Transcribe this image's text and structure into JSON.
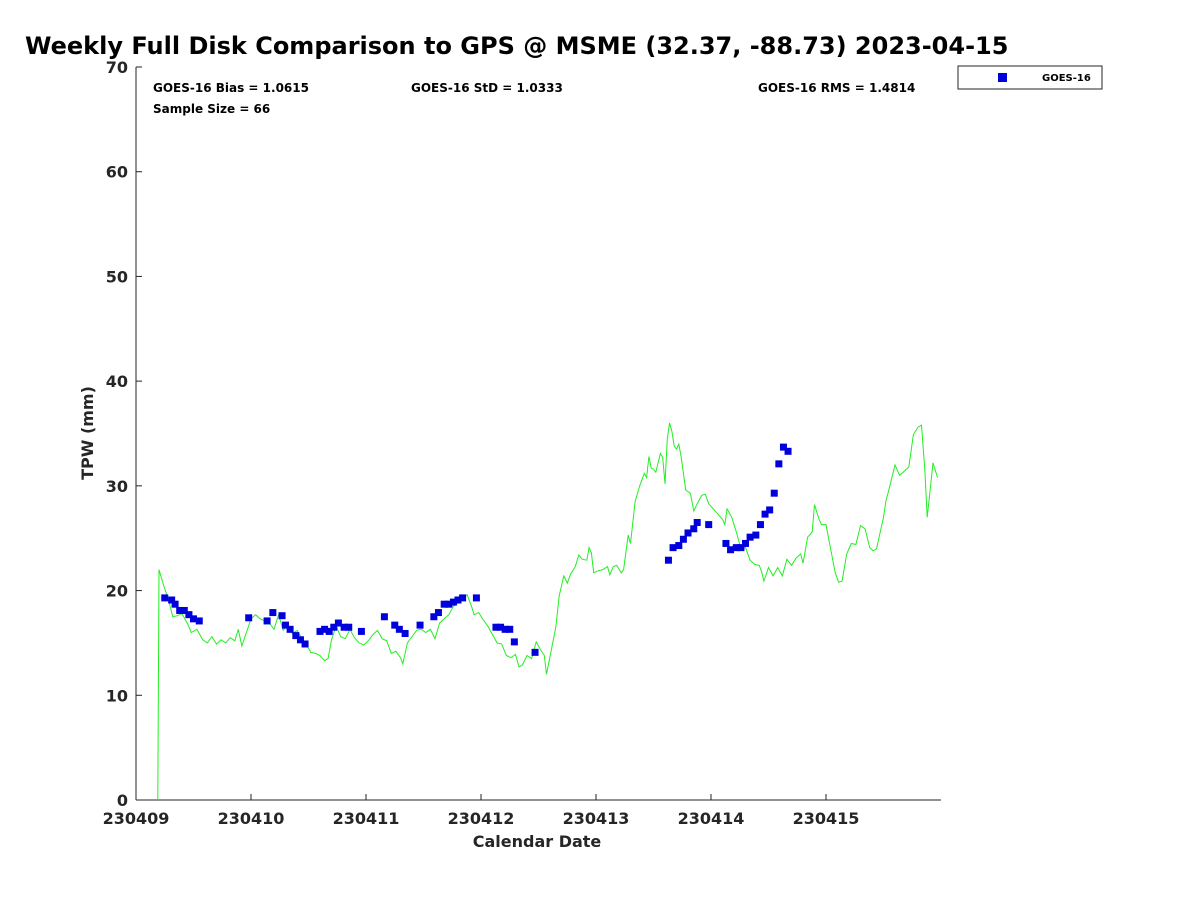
{
  "chart_data": {
    "type": "scatter",
    "title": "Weekly Full Disk Comparison to GPS @ MSME (32.37, -88.73) 2023-04-15",
    "xlabel": "Calendar Date",
    "ylabel": "TPW (mm)",
    "xlim": [
      0,
      7
    ],
    "ylim": [
      0,
      70
    ],
    "x_ticks": [
      0,
      1,
      2,
      3,
      4,
      5,
      6
    ],
    "x_tick_labels": [
      "230409",
      "230410",
      "230411",
      "230412",
      "230413",
      "230414",
      "230415"
    ],
    "y_ticks": [
      0,
      10,
      20,
      30,
      40,
      50,
      60,
      70
    ],
    "y_tick_labels": [
      "0",
      "10",
      "20",
      "30",
      "40",
      "50",
      "60",
      "70"
    ],
    "grid": false,
    "legend_position": "outside top-right",
    "stats": {
      "bias": "GOES-16 Bias = 1.0615",
      "std": "GOES-16 StD = 1.0333",
      "rms": "GOES-16 RMS = 1.4814",
      "sample": "Sample Size = 66"
    },
    "series": [
      {
        "name": "GOES-16",
        "kind": "scatter",
        "marker": "square",
        "color": "#0000dd",
        "points": [
          [
            0.25,
            19.3
          ],
          [
            0.31,
            19.1
          ],
          [
            0.34,
            18.7
          ],
          [
            0.38,
            18.1
          ],
          [
            0.42,
            18.1
          ],
          [
            0.46,
            17.7
          ],
          [
            0.5,
            17.3
          ],
          [
            0.55,
            17.1
          ],
          [
            0.98,
            17.4
          ],
          [
            1.14,
            17.1
          ],
          [
            1.19,
            17.9
          ],
          [
            1.27,
            17.6
          ],
          [
            1.3,
            16.7
          ],
          [
            1.34,
            16.3
          ],
          [
            1.39,
            15.7
          ],
          [
            1.43,
            15.3
          ],
          [
            1.47,
            14.9
          ],
          [
            1.6,
            16.1
          ],
          [
            1.64,
            16.3
          ],
          [
            1.68,
            16.1
          ],
          [
            1.72,
            16.5
          ],
          [
            1.76,
            16.9
          ],
          [
            1.81,
            16.5
          ],
          [
            1.85,
            16.5
          ],
          [
            1.96,
            16.1
          ],
          [
            2.16,
            17.5
          ],
          [
            2.25,
            16.7
          ],
          [
            2.29,
            16.3
          ],
          [
            2.34,
            15.9
          ],
          [
            2.47,
            16.7
          ],
          [
            2.59,
            17.5
          ],
          [
            2.63,
            17.9
          ],
          [
            2.68,
            18.7
          ],
          [
            2.72,
            18.7
          ],
          [
            2.76,
            18.9
          ],
          [
            2.8,
            19.1
          ],
          [
            2.84,
            19.3
          ],
          [
            2.96,
            19.3
          ],
          [
            3.13,
            16.5
          ],
          [
            3.17,
            16.5
          ],
          [
            3.21,
            16.3
          ],
          [
            3.25,
            16.3
          ],
          [
            3.29,
            15.1
          ],
          [
            3.47,
            14.1
          ],
          [
            4.63,
            22.9
          ],
          [
            4.67,
            24.1
          ],
          [
            4.72,
            24.3
          ],
          [
            4.76,
            24.9
          ],
          [
            4.8,
            25.5
          ],
          [
            4.85,
            25.9
          ],
          [
            4.88,
            26.5
          ],
          [
            4.98,
            26.3
          ],
          [
            5.13,
            24.5
          ],
          [
            5.17,
            23.9
          ],
          [
            5.22,
            24.1
          ],
          [
            5.26,
            24.1
          ],
          [
            5.3,
            24.5
          ],
          [
            5.34,
            25.1
          ],
          [
            5.39,
            25.3
          ],
          [
            5.43,
            26.3
          ],
          [
            5.47,
            27.3
          ],
          [
            5.51,
            27.7
          ],
          [
            5.55,
            29.3
          ],
          [
            5.59,
            32.1
          ],
          [
            5.63,
            33.7
          ],
          [
            5.67,
            33.3
          ]
        ]
      },
      {
        "kind": "line",
        "color": "#22ee22",
        "points": [
          [
            0.19,
            0
          ],
          [
            0.2,
            22.0
          ],
          [
            0.24,
            20.5
          ],
          [
            0.28,
            19.2
          ],
          [
            0.32,
            17.5
          ],
          [
            0.36,
            17.6
          ],
          [
            0.4,
            17.8
          ],
          [
            0.45,
            16.8
          ],
          [
            0.48,
            16.0
          ],
          [
            0.53,
            16.3
          ],
          [
            0.58,
            15.3
          ],
          [
            0.62,
            15.0
          ],
          [
            0.66,
            15.6
          ],
          [
            0.7,
            14.9
          ],
          [
            0.74,
            15.3
          ],
          [
            0.78,
            15.0
          ],
          [
            0.82,
            15.5
          ],
          [
            0.86,
            15.2
          ],
          [
            0.89,
            16.3
          ],
          [
            0.92,
            14.7
          ],
          [
            0.96,
            16.0
          ],
          [
            1.0,
            17.3
          ],
          [
            1.04,
            17.7
          ],
          [
            1.08,
            17.3
          ],
          [
            1.12,
            17.1
          ],
          [
            1.16,
            16.9
          ],
          [
            1.2,
            16.3
          ],
          [
            1.24,
            17.7
          ],
          [
            1.28,
            16.2
          ],
          [
            1.32,
            16.7
          ],
          [
            1.36,
            15.9
          ],
          [
            1.4,
            16.2
          ],
          [
            1.44,
            15.5
          ],
          [
            1.48,
            14.9
          ],
          [
            1.52,
            14.1
          ],
          [
            1.56,
            14.0
          ],
          [
            1.6,
            13.8
          ],
          [
            1.64,
            13.3
          ],
          [
            1.67,
            13.5
          ],
          [
            1.7,
            15.3
          ],
          [
            1.74,
            16.6
          ],
          [
            1.78,
            15.6
          ],
          [
            1.82,
            15.4
          ],
          [
            1.86,
            16.3
          ],
          [
            1.9,
            15.5
          ],
          [
            1.94,
            15.0
          ],
          [
            1.98,
            14.8
          ],
          [
            2.02,
            15.2
          ],
          [
            2.06,
            15.8
          ],
          [
            2.1,
            16.2
          ],
          [
            2.14,
            15.4
          ],
          [
            2.18,
            15.2
          ],
          [
            2.22,
            14.0
          ],
          [
            2.26,
            14.2
          ],
          [
            2.3,
            13.6
          ],
          [
            2.32,
            13.0
          ],
          [
            2.36,
            15.0
          ],
          [
            2.4,
            15.6
          ],
          [
            2.44,
            16.2
          ],
          [
            2.48,
            16.3
          ],
          [
            2.52,
            16.0
          ],
          [
            2.56,
            16.3
          ],
          [
            2.6,
            15.4
          ],
          [
            2.64,
            16.9
          ],
          [
            2.68,
            17.3
          ],
          [
            2.72,
            17.7
          ],
          [
            2.76,
            18.5
          ],
          [
            2.8,
            18.8
          ],
          [
            2.84,
            19.2
          ],
          [
            2.88,
            19.6
          ],
          [
            2.92,
            18.4
          ],
          [
            2.94,
            17.7
          ],
          [
            2.98,
            17.9
          ],
          [
            3.02,
            17.2
          ],
          [
            3.06,
            16.6
          ],
          [
            3.1,
            15.8
          ],
          [
            3.14,
            15.0
          ],
          [
            3.18,
            14.9
          ],
          [
            3.22,
            13.8
          ],
          [
            3.26,
            13.6
          ],
          [
            3.3,
            13.9
          ],
          [
            3.33,
            12.7
          ],
          [
            3.36,
            12.9
          ],
          [
            3.4,
            13.8
          ],
          [
            3.44,
            13.5
          ],
          [
            3.48,
            15.1
          ],
          [
            3.52,
            14.3
          ],
          [
            3.55,
            13.8
          ],
          [
            3.57,
            12.0
          ],
          [
            3.62,
            14.8
          ],
          [
            3.65,
            16.5
          ],
          [
            3.68,
            19.5
          ],
          [
            3.72,
            21.4
          ],
          [
            3.75,
            20.7
          ],
          [
            3.78,
            21.6
          ],
          [
            3.82,
            22.3
          ],
          [
            3.85,
            23.4
          ],
          [
            3.88,
            23.0
          ],
          [
            3.92,
            22.9
          ],
          [
            3.94,
            24.1
          ],
          [
            3.96,
            23.6
          ],
          [
            3.98,
            21.7
          ],
          [
            4.02,
            21.9
          ],
          [
            4.06,
            22.0
          ],
          [
            4.1,
            22.3
          ],
          [
            4.12,
            21.5
          ],
          [
            4.15,
            22.3
          ],
          [
            4.18,
            22.4
          ],
          [
            4.22,
            21.7
          ],
          [
            4.24,
            22.0
          ],
          [
            4.28,
            25.3
          ],
          [
            4.3,
            24.5
          ],
          [
            4.34,
            28.5
          ],
          [
            4.38,
            30.0
          ],
          [
            4.42,
            31.2
          ],
          [
            4.44,
            30.8
          ],
          [
            4.46,
            32.8
          ],
          [
            4.48,
            31.7
          ],
          [
            4.5,
            31.6
          ],
          [
            4.52,
            31.3
          ],
          [
            4.56,
            33.1
          ],
          [
            4.58,
            32.7
          ],
          [
            4.6,
            30.2
          ],
          [
            4.62,
            34.5
          ],
          [
            4.64,
            36.0
          ],
          [
            4.66,
            35.2
          ],
          [
            4.68,
            33.8
          ],
          [
            4.7,
            33.5
          ],
          [
            4.72,
            34.0
          ],
          [
            4.74,
            32.8
          ],
          [
            4.78,
            29.6
          ],
          [
            4.82,
            29.3
          ],
          [
            4.85,
            27.6
          ],
          [
            4.88,
            28.3
          ],
          [
            4.92,
            29.1
          ],
          [
            4.95,
            29.2
          ],
          [
            4.98,
            28.3
          ],
          [
            5.02,
            27.8
          ],
          [
            5.06,
            27.3
          ],
          [
            5.1,
            26.8
          ],
          [
            5.12,
            26.3
          ],
          [
            5.14,
            27.8
          ],
          [
            5.18,
            27.0
          ],
          [
            5.22,
            25.6
          ],
          [
            5.26,
            24.0
          ],
          [
            5.3,
            24.1
          ],
          [
            5.34,
            22.9
          ],
          [
            5.38,
            22.5
          ],
          [
            5.42,
            22.4
          ],
          [
            5.44,
            21.8
          ],
          [
            5.46,
            20.9
          ],
          [
            5.5,
            22.2
          ],
          [
            5.54,
            21.4
          ],
          [
            5.58,
            22.2
          ],
          [
            5.62,
            21.4
          ],
          [
            5.66,
            23.0
          ],
          [
            5.7,
            22.4
          ],
          [
            5.74,
            23.1
          ],
          [
            5.78,
            23.5
          ],
          [
            5.8,
            22.6
          ],
          [
            5.84,
            25.1
          ],
          [
            5.88,
            25.6
          ],
          [
            5.9,
            28.2
          ],
          [
            5.94,
            26.8
          ],
          [
            5.96,
            26.3
          ],
          [
            6.0,
            26.3
          ],
          [
            6.04,
            24.0
          ],
          [
            6.08,
            21.7
          ],
          [
            6.11,
            20.8
          ],
          [
            6.14,
            20.9
          ],
          [
            6.18,
            23.5
          ],
          [
            6.22,
            24.5
          ],
          [
            6.26,
            24.4
          ],
          [
            6.3,
            26.2
          ],
          [
            6.34,
            25.9
          ],
          [
            6.38,
            24.1
          ],
          [
            6.41,
            23.8
          ],
          [
            6.44,
            24.0
          ],
          [
            6.46,
            25.0
          ],
          [
            6.5,
            27.0
          ],
          [
            6.52,
            28.5
          ],
          [
            6.56,
            30.2
          ],
          [
            6.6,
            32.0
          ],
          [
            6.64,
            31.0
          ],
          [
            6.68,
            31.4
          ],
          [
            6.72,
            31.8
          ],
          [
            6.76,
            34.9
          ],
          [
            6.8,
            35.6
          ],
          [
            6.83,
            35.8
          ],
          [
            6.86,
            31.4
          ],
          [
            6.88,
            27.0
          ],
          [
            6.9,
            29.0
          ],
          [
            6.93,
            32.2
          ],
          [
            6.97,
            30.8
          ]
        ]
      }
    ]
  }
}
